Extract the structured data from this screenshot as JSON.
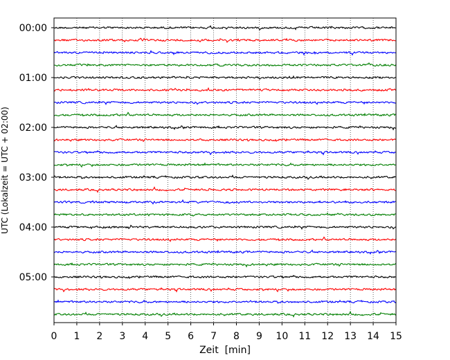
{
  "chart_data": {
    "type": "line",
    "title": "",
    "xlabel": "Zeit  [min]",
    "ylabel": "UTC (Lokalzeit = UTC + 02:00)",
    "xlim": [
      0,
      15
    ],
    "x_ticks": [
      0,
      1,
      2,
      3,
      4,
      5,
      6,
      7,
      8,
      9,
      10,
      11,
      12,
      13,
      14,
      15
    ],
    "y_tick_labels": [
      "00:00",
      "01:00",
      "02:00",
      "03:00",
      "04:00",
      "05:00"
    ],
    "trace_interval_minutes": 15,
    "trace_count": 24,
    "trace_colors": [
      "#000000",
      "#ff0000",
      "#0000ff",
      "#007f00"
    ],
    "x_grid": "dotted vertical lines at each minute",
    "legend": "none"
  }
}
